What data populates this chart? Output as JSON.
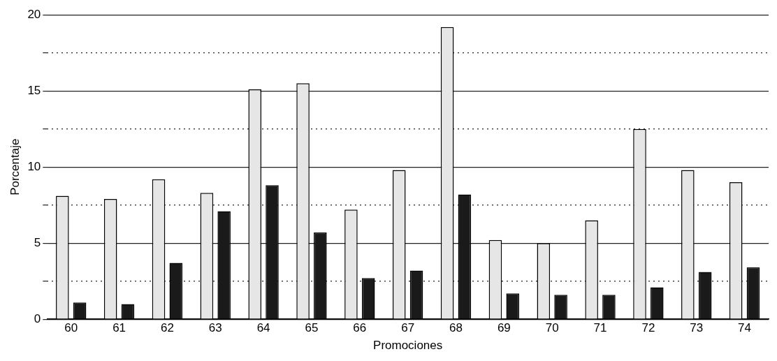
{
  "chart_data": {
    "type": "bar",
    "xlabel": "Promociones",
    "ylabel": "Porcentaje",
    "categories": [
      "60",
      "61",
      "62",
      "63",
      "64",
      "65",
      "66",
      "67",
      "68",
      "69",
      "70",
      "71",
      "72",
      "73",
      "74"
    ],
    "series": [
      {
        "color": "#e6e6e6",
        "values": [
          8.1,
          7.9,
          9.2,
          8.3,
          15.1,
          15.5,
          7.2,
          9.8,
          19.2,
          5.2,
          5.0,
          6.5,
          12.5,
          9.8,
          9.0
        ]
      },
      {
        "color": "#1a1a1a",
        "values": [
          1.1,
          1.0,
          3.7,
          7.1,
          8.8,
          5.7,
          2.7,
          3.2,
          8.2,
          1.7,
          1.6,
          1.6,
          2.1,
          3.1,
          3.4
        ]
      }
    ],
    "ylim": [
      0,
      20
    ],
    "yticks": [
      0,
      {
        "value": 2.5,
        "label": null
      },
      5,
      {
        "value": 7.5,
        "label": null
      },
      10,
      {
        "value": 12.5,
        "label": null
      },
      15,
      {
        "value": 17.5,
        "label": null
      },
      20
    ],
    "grid": "y",
    "legend": false
  }
}
